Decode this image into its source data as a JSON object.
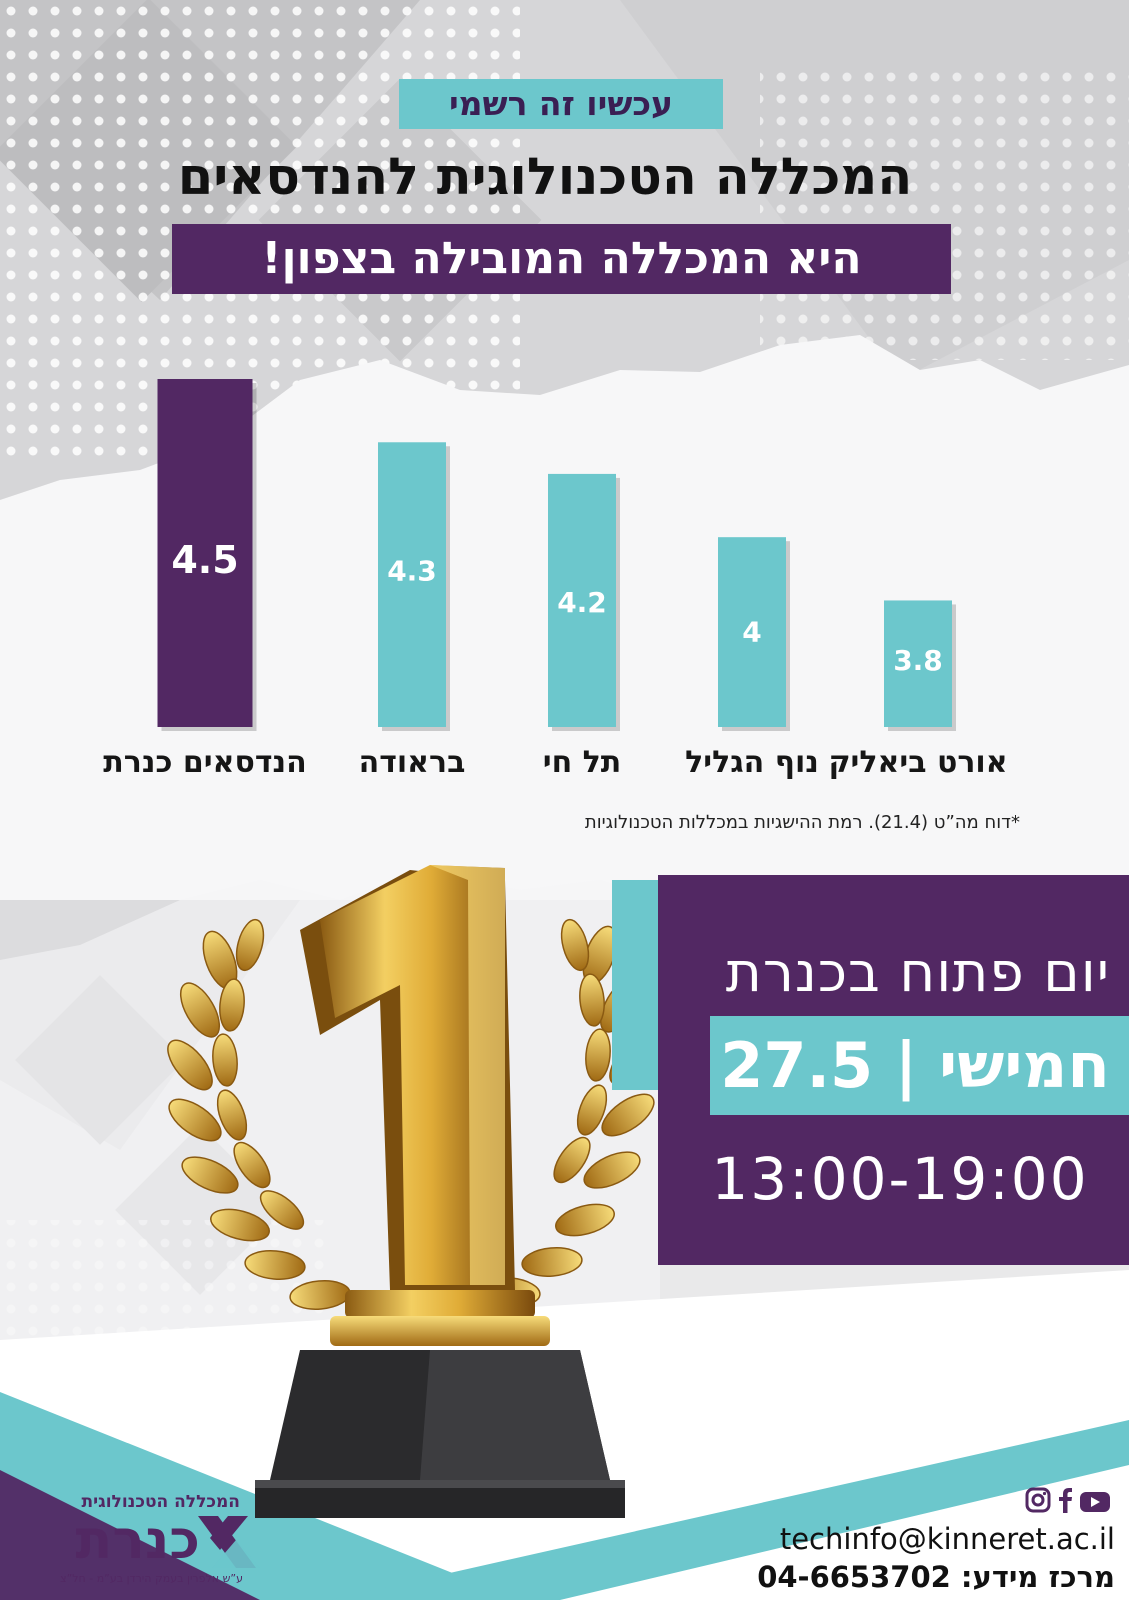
{
  "header": {
    "tag": "עכשיו זה רשמי",
    "headline": "המכללה הטכנולוגית להנדסאים בכנרת",
    "subheadline": "היא המכללה המובילה בצפון!"
  },
  "chart_data": {
    "type": "bar",
    "categories": [
      "הנדסאים כנרת",
      "בראודה",
      "תל חי",
      "נוף הגליל",
      "אורט ביאליק"
    ],
    "values": [
      4.5,
      4.3,
      4.2,
      4,
      3.8
    ],
    "value_labels": [
      "4.5",
      "4.3",
      "4.2",
      "4",
      "3.8"
    ],
    "highlight_index": 0,
    "colors": {
      "highlight": "#522863",
      "default": "#6cc7cc"
    },
    "ylim": [
      3.4,
      4.5
    ],
    "xlabel": "",
    "ylabel": "",
    "grid": false
  },
  "footnote": "*דוח מה”ט (21.4). רמת ההישגיות במכללות הטכנולוגיות",
  "open_day": {
    "title": "יום פתוח בכנרת",
    "date": "חמישי | 27.5",
    "hours": "13:00-19:00"
  },
  "contact": {
    "social_icons": [
      "instagram-icon",
      "facebook-icon",
      "youtube-icon"
    ],
    "email": "techinfo@kinneret.ac.il",
    "phone": "מרכז מידע: 04-6653702"
  },
  "logo": {
    "top": "המכללה הטכנולוגית",
    "name": "כנרת",
    "sub": "ע”ש אלפרין בעמק הירדן בע”מ - חל”צ"
  },
  "colors": {
    "purple": "#522863",
    "teal": "#6cc7cc",
    "gold": "#d9a531"
  }
}
